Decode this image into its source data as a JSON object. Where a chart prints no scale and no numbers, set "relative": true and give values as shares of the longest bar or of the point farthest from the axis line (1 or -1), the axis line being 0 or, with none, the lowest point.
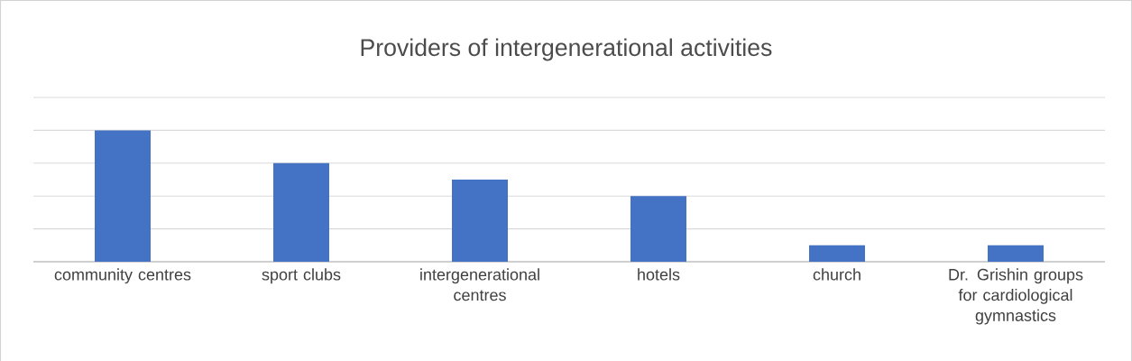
{
  "chart_data": {
    "type": "bar",
    "title": "Providers of intergenerational activities",
    "categories": [
      "community centres",
      "sport clubs",
      "intergenerational centres",
      "hotels",
      "church",
      "Dr. Grishin groups for cardiological gymnastics"
    ],
    "values": [
      1,
      0.75,
      0.625,
      0.5,
      0.125,
      0.125
    ],
    "relative": true,
    "color": "#4472c4",
    "grid": "y"
  }
}
